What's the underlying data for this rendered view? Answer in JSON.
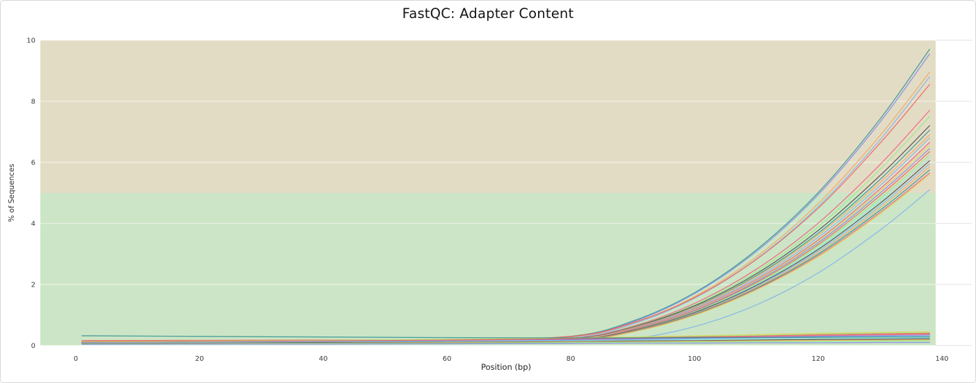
{
  "page": {
    "title": "FastQC: Adapter Content"
  },
  "chart_data": {
    "type": "line",
    "title": "FastQC: Adapter Content",
    "xlabel": "Position (bp)",
    "ylabel": "% of Sequences",
    "xlim": [
      -5.7,
      144.8
    ],
    "ylim": [
      0,
      10
    ],
    "xticks": [
      0,
      20,
      40,
      60,
      80,
      100,
      120,
      140
    ],
    "yticks": [
      0,
      2,
      4,
      6,
      8,
      10
    ],
    "grid": true,
    "legend": "none",
    "bands": [
      {
        "from": 0,
        "to": 5,
        "color": "#cce5c6"
      },
      {
        "from": 5,
        "to": 10,
        "color": "#e3dcc5"
      }
    ],
    "band_x_extent": [
      -5.7,
      139.0
    ],
    "x": [
      1,
      20,
      40,
      60,
      80,
      90,
      100,
      110,
      120,
      130,
      138
    ],
    "series": [
      {
        "color": "#2b908f",
        "values": [
          0.14,
          0.15,
          0.15,
          0.16,
          0.3,
          0.8,
          1.73,
          3.13,
          5.01,
          7.42,
          9.7
        ]
      },
      {
        "color": "#8085e9",
        "values": [
          0.13,
          0.14,
          0.14,
          0.15,
          0.28,
          0.77,
          1.7,
          3.08,
          4.94,
          7.32,
          9.55
        ]
      },
      {
        "color": "#f7a35c",
        "values": [
          0.13,
          0.14,
          0.15,
          0.16,
          0.27,
          0.73,
          1.6,
          2.9,
          4.65,
          6.88,
          8.95
        ]
      },
      {
        "color": "#7cb5ec",
        "values": [
          0.11,
          0.12,
          0.12,
          0.13,
          0.25,
          0.7,
          1.55,
          2.83,
          4.55,
          6.74,
          8.8
        ]
      },
      {
        "color": "#f45b5b",
        "values": [
          0.16,
          0.17,
          0.18,
          0.19,
          0.3,
          0.74,
          1.57,
          2.82,
          4.5,
          6.63,
          8.55
        ]
      },
      {
        "color": "#f15c80",
        "values": [
          0.11,
          0.11,
          0.12,
          0.13,
          0.23,
          0.63,
          1.38,
          2.5,
          4.01,
          5.93,
          7.7
        ]
      },
      {
        "color": "#90ed7d",
        "values": [
          0.09,
          0.1,
          0.1,
          0.11,
          0.21,
          0.61,
          1.33,
          2.42,
          3.89,
          5.77,
          7.5
        ]
      },
      {
        "color": "#434348",
        "values": [
          0.1,
          0.11,
          0.11,
          0.12,
          0.22,
          0.6,
          1.3,
          2.35,
          3.77,
          5.57,
          7.2
        ]
      },
      {
        "color": "#2b908f",
        "values": [
          0.09,
          0.09,
          0.1,
          0.11,
          0.2,
          0.58,
          1.26,
          2.29,
          3.68,
          5.44,
          7.05
        ]
      },
      {
        "color": "#f7a35c",
        "values": [
          0.1,
          0.11,
          0.12,
          0.12,
          0.21,
          0.58,
          1.25,
          2.26,
          3.62,
          5.34,
          6.9
        ]
      },
      {
        "color": "#7cb5ec",
        "values": [
          0.09,
          0.09,
          0.1,
          0.1,
          0.2,
          0.56,
          1.22,
          2.21,
          3.54,
          5.24,
          6.8
        ]
      },
      {
        "color": "#f15c80",
        "values": [
          0.08,
          0.09,
          0.09,
          0.1,
          0.19,
          0.55,
          1.19,
          2.16,
          3.46,
          5.13,
          6.65
        ]
      },
      {
        "color": "#e4d354",
        "values": [
          0.08,
          0.09,
          0.09,
          0.1,
          0.19,
          0.54,
          1.17,
          2.13,
          3.42,
          5.06,
          6.55
        ]
      },
      {
        "color": "#8085e9",
        "values": [
          0.08,
          0.08,
          0.09,
          0.1,
          0.18,
          0.53,
          1.15,
          2.1,
          3.37,
          4.99,
          6.45
        ]
      },
      {
        "color": "#f45b5b",
        "values": [
          0.08,
          0.08,
          0.09,
          0.09,
          0.18,
          0.52,
          1.13,
          2.06,
          3.31,
          4.91,
          6.35
        ]
      },
      {
        "color": "#90ed7d",
        "values": [
          0.07,
          0.07,
          0.08,
          0.08,
          0.17,
          0.5,
          1.11,
          2.03,
          3.26,
          4.81,
          6.25
        ]
      },
      {
        "color": "#91e8e1",
        "values": [
          0.07,
          0.07,
          0.08,
          0.08,
          0.17,
          0.49,
          1.09,
          2.0,
          3.2,
          4.74,
          6.15
        ]
      },
      {
        "color": "#434348",
        "values": [
          0.08,
          0.08,
          0.09,
          0.09,
          0.17,
          0.49,
          1.08,
          1.97,
          3.15,
          4.66,
          6.05
        ]
      },
      {
        "color": "#7cb5ec",
        "values": [
          0.07,
          0.07,
          0.07,
          0.08,
          0.16,
          0.47,
          1.05,
          1.93,
          3.09,
          4.58,
          5.95
        ]
      },
      {
        "color": "#f7a35c",
        "values": [
          0.07,
          0.07,
          0.07,
          0.08,
          0.16,
          0.47,
          1.04,
          1.9,
          3.04,
          4.51,
          5.85
        ]
      },
      {
        "color": "#2b908f",
        "values": [
          0.06,
          0.07,
          0.07,
          0.08,
          0.16,
          0.46,
          1.02,
          1.87,
          2.99,
          4.43,
          5.75
        ]
      },
      {
        "color": "#f15c80",
        "values": [
          0.06,
          0.06,
          0.07,
          0.07,
          0.15,
          0.45,
          1.0,
          1.84,
          2.94,
          4.36,
          5.65
        ]
      },
      {
        "color": "#e4d354",
        "values": [
          0.06,
          0.06,
          0.07,
          0.07,
          0.15,
          0.44,
          0.99,
          1.82,
          2.91,
          4.31,
          5.6
        ]
      },
      {
        "color": "#7cb5ec",
        "values": [
          0.06,
          0.06,
          0.07,
          0.07,
          0.1,
          0.22,
          0.62,
          1.33,
          2.38,
          3.78,
          5.1
        ]
      },
      {
        "color": "#e4d354",
        "values": [
          0.12,
          0.14,
          0.17,
          0.2,
          0.25,
          0.28,
          0.32,
          0.36,
          0.4,
          0.43,
          0.45
        ]
      },
      {
        "color": "#90ed7d",
        "values": [
          0.11,
          0.13,
          0.16,
          0.19,
          0.23,
          0.26,
          0.3,
          0.33,
          0.37,
          0.4,
          0.42
        ]
      },
      {
        "color": "#f45b5b",
        "values": [
          0.1,
          0.12,
          0.15,
          0.18,
          0.22,
          0.25,
          0.28,
          0.31,
          0.35,
          0.38,
          0.4
        ]
      },
      {
        "color": "#f15c80",
        "values": [
          0.1,
          0.11,
          0.14,
          0.16,
          0.2,
          0.23,
          0.26,
          0.29,
          0.32,
          0.35,
          0.37
        ]
      },
      {
        "color": "#8085e9",
        "values": [
          0.09,
          0.11,
          0.13,
          0.15,
          0.19,
          0.21,
          0.24,
          0.27,
          0.3,
          0.32,
          0.34
        ]
      },
      {
        "color": "#7cb5ec",
        "values": [
          0.09,
          0.1,
          0.12,
          0.14,
          0.17,
          0.19,
          0.22,
          0.25,
          0.27,
          0.29,
          0.31
        ]
      },
      {
        "color": "#2b908f",
        "values": [
          0.32,
          0.3,
          0.28,
          0.26,
          0.25,
          0.25,
          0.26,
          0.26,
          0.27,
          0.28,
          0.28
        ]
      },
      {
        "color": "#91e8e1",
        "values": [
          0.08,
          0.09,
          0.11,
          0.13,
          0.15,
          0.17,
          0.19,
          0.21,
          0.23,
          0.24,
          0.25
        ]
      },
      {
        "color": "#434348",
        "values": [
          0.07,
          0.08,
          0.1,
          0.11,
          0.13,
          0.15,
          0.16,
          0.18,
          0.2,
          0.21,
          0.22
        ]
      },
      {
        "color": "#f7a35c",
        "values": [
          0.06,
          0.07,
          0.08,
          0.1,
          0.12,
          0.13,
          0.14,
          0.16,
          0.17,
          0.18,
          0.19
        ]
      },
      {
        "color": "#90ed7d",
        "values": [
          0.05,
          0.06,
          0.07,
          0.08,
          0.1,
          0.11,
          0.12,
          0.13,
          0.14,
          0.15,
          0.15
        ]
      },
      {
        "color": "#8085e9",
        "values": [
          0.04,
          0.05,
          0.05,
          0.06,
          0.07,
          0.08,
          0.08,
          0.09,
          0.09,
          0.1,
          0.1
        ]
      }
    ],
    "style": {
      "grid_color_over_bands": "rgba(255,255,255,0.55)",
      "grid_color_outside": "#ececec",
      "tick_color": "#3a3a3a"
    }
  }
}
